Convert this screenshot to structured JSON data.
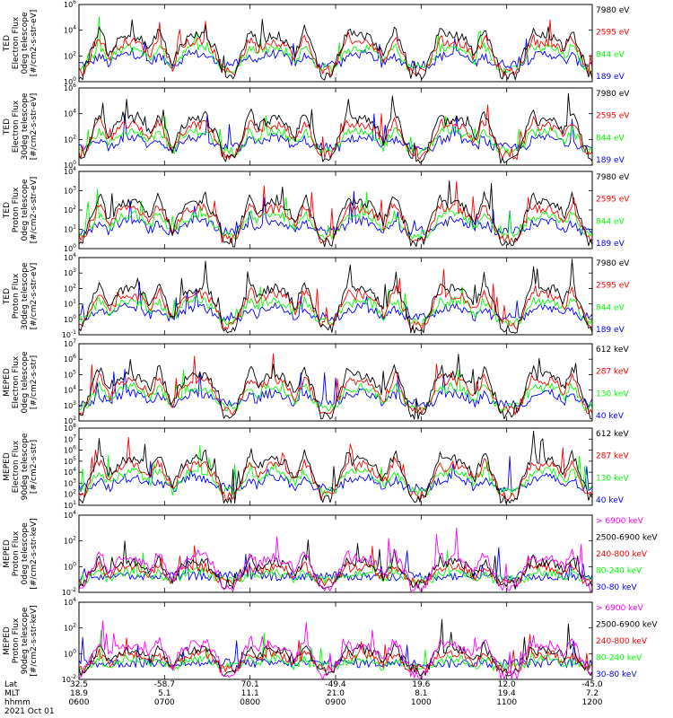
{
  "chart_data": {
    "type": "line",
    "x_ticks": [
      "0600",
      "0700",
      "0800",
      "0900",
      "1000",
      "1100",
      "1200"
    ],
    "footer": {
      "labels": [
        "Lat",
        "MLT",
        "hhmm"
      ],
      "columns": [
        {
          "lat": "32.5",
          "mlt": "18.9",
          "hhmm": "0600"
        },
        {
          "lat": "-58.7",
          "mlt": "5.1",
          "hhmm": "0700"
        },
        {
          "lat": "70.1",
          "mlt": "11.1",
          "hhmm": "0800"
        },
        {
          "lat": "-49.4",
          "mlt": "21.0",
          "hhmm": "0900"
        },
        {
          "lat": "19.6",
          "mlt": "8.1",
          "hhmm": "1000"
        },
        {
          "lat": "12.0",
          "mlt": "19.4",
          "hhmm": "1100"
        },
        {
          "lat": "-45.0",
          "mlt": "7.2",
          "hhmm": "1200"
        }
      ],
      "date": "2021 Oct 01"
    },
    "panels": [
      {
        "ylabel": [
          "TED",
          "Electron Flux",
          "0deg telescope",
          "[#/cm2-s-str-eV]"
        ],
        "yticks": [
          "10^6",
          "10^4",
          "10^2",
          "10^0"
        ],
        "legend": [
          {
            "label": "7980 eV",
            "color": "#000000"
          },
          {
            "label": "2595 eV",
            "color": "#ff0000"
          },
          {
            "label": "844 eV",
            "color": "#00ff00"
          },
          {
            "label": "189 eV",
            "color": "#0000ff"
          }
        ]
      },
      {
        "ylabel": [
          "TED",
          "Electron Flux",
          "30deg telescope",
          "[#/cm2-s-str-eV]"
        ],
        "yticks": [
          "10^6",
          "10^4",
          "10^2",
          "10^0"
        ],
        "legend": [
          {
            "label": "7980 eV",
            "color": "#000000"
          },
          {
            "label": "2595 eV",
            "color": "#ff0000"
          },
          {
            "label": "844 eV",
            "color": "#00ff00"
          },
          {
            "label": "189 eV",
            "color": "#0000ff"
          }
        ]
      },
      {
        "ylabel": [
          "TED",
          "Proton Flux",
          "0deg telescope",
          "[#/cm2-s-str-eV]"
        ],
        "yticks": [
          "10^4",
          "10^3",
          "10^2",
          "10^1",
          "10^0"
        ],
        "legend": [
          {
            "label": "7980 eV",
            "color": "#000000"
          },
          {
            "label": "2595 eV",
            "color": "#ff0000"
          },
          {
            "label": "844 eV",
            "color": "#00ff00"
          },
          {
            "label": "189 eV",
            "color": "#0000ff"
          }
        ]
      },
      {
        "ylabel": [
          "TED",
          "Proton Flux",
          "30deg telescope",
          "[#/cm2-s-str-eV]"
        ],
        "yticks": [
          "10^4",
          "10^3",
          "10^2",
          "10^1",
          "10^0",
          "10^-1"
        ],
        "legend": [
          {
            "label": "7980 eV",
            "color": "#000000"
          },
          {
            "label": "2595 eV",
            "color": "#ff0000"
          },
          {
            "label": "844 eV",
            "color": "#00ff00"
          },
          {
            "label": "189 eV",
            "color": "#0000ff"
          }
        ]
      },
      {
        "ylabel": [
          "MEPED",
          "Electron Flux",
          "0deg telescope",
          "[#/cm2-s-str]"
        ],
        "yticks": [
          "10^7",
          "10^6",
          "10^5",
          "10^4",
          "10^3",
          "10^2"
        ],
        "legend": [
          {
            "label": "612 keV",
            "color": "#000000"
          },
          {
            "label": "287 keV",
            "color": "#ff0000"
          },
          {
            "label": "130 keV",
            "color": "#00ff00"
          },
          {
            "label": "40 keV",
            "color": "#0000ff"
          }
        ]
      },
      {
        "ylabel": [
          "MEPED",
          "Electron Flux",
          "90deg telescope",
          "[#/cm2-s-str]"
        ],
        "yticks": [
          "10^8",
          "10^7",
          "10^6",
          "10^5",
          "10^4",
          "10^3",
          "10^2",
          "10^1"
        ],
        "legend": [
          {
            "label": "612 keV",
            "color": "#000000"
          },
          {
            "label": "287 keV",
            "color": "#ff0000"
          },
          {
            "label": "130 keV",
            "color": "#00ff00"
          },
          {
            "label": "40 keV",
            "color": "#0000ff"
          }
        ]
      },
      {
        "ylabel": [
          "MEPED",
          "Proton Flux",
          "0deg telescope",
          "[#/cm2-s-str-keV]"
        ],
        "yticks": [
          "10^4",
          "10^2",
          "10^0",
          "10^-2"
        ],
        "legend": [
          {
            "label": "> 6900 keV",
            "color": "#ff00ff"
          },
          {
            "label": "2500-6900 keV",
            "color": "#000000"
          },
          {
            "label": "240-800 keV",
            "color": "#ff0000"
          },
          {
            "label": "80-240 keV",
            "color": "#00ff00"
          },
          {
            "label": "30-80 keV",
            "color": "#0000ff"
          }
        ]
      },
      {
        "ylabel": [
          "MEPED",
          "Proton Flux",
          "90deg telescope",
          "[#/cm2-s-str-keV]"
        ],
        "yticks": [
          "10^4",
          "10^2",
          "10^0",
          "10^-2"
        ],
        "legend": [
          {
            "label": "> 6900 keV",
            "color": "#ff00ff"
          },
          {
            "label": "2500-6900 keV",
            "color": "#000000"
          },
          {
            "label": "240-800 keV",
            "color": "#ff0000"
          },
          {
            "label": "80-240 keV",
            "color": "#00ff00"
          },
          {
            "label": "30-80 keV",
            "color": "#0000ff"
          }
        ]
      }
    ]
  }
}
